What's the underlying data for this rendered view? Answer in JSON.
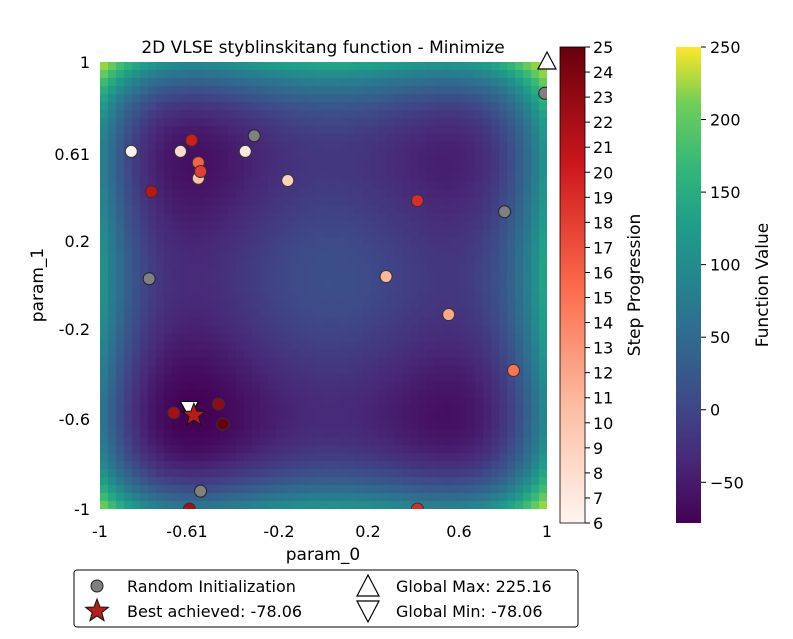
{
  "chart_data": {
    "type": "scatter",
    "title": "2D VLSE styblinskitang function - Minimize",
    "xlabel": "param_0",
    "ylabel": "param_1",
    "xlim": [
      -1,
      1
    ],
    "ylim": [
      -1,
      1
    ],
    "x_ticks": [
      "-1",
      "-0.61",
      "-0.2",
      "0.2",
      "0.6",
      "1"
    ],
    "y_ticks": [
      "1",
      "0.61",
      "0.2",
      "-0.2",
      "-0.6",
      "-1"
    ],
    "grid": false,
    "background": "heatmap of function value (viridis)",
    "colorbar_step": {
      "label": "Step Progression",
      "range": [
        6,
        25
      ],
      "ticks": [
        "6",
        "7",
        "8",
        "9",
        "10",
        "11",
        "12",
        "13",
        "14",
        "15",
        "16",
        "17",
        "18",
        "19",
        "20",
        "21",
        "22",
        "23",
        "24",
        "25"
      ],
      "colormap": "Reds"
    },
    "colorbar_function": {
      "label": "Function Value",
      "range": [
        -78.06,
        250
      ],
      "ticks": [
        "250",
        "200",
        "150",
        "100",
        "50",
        "0",
        "−50"
      ],
      "colormap": "viridis"
    },
    "random_initialization": [
      {
        "x": 0.99,
        "y": 0.86
      },
      {
        "x": -0.31,
        "y": 0.67
      },
      {
        "x": 0.81,
        "y": 0.33
      },
      {
        "x": -0.78,
        "y": 0.03
      },
      {
        "x": -0.55,
        "y": -0.92
      }
    ],
    "steps": [
      {
        "x": -0.86,
        "y": 0.6,
        "step": 6
      },
      {
        "x": -0.35,
        "y": 0.6,
        "step": 7
      },
      {
        "x": -0.64,
        "y": 0.6,
        "step": 8
      },
      {
        "x": -0.16,
        "y": 0.47,
        "step": 9
      },
      {
        "x": -0.56,
        "y": 0.48,
        "step": 10
      },
      {
        "x": 0.28,
        "y": 0.04,
        "step": 11
      },
      {
        "x": 0.56,
        "y": -0.13,
        "step": 12
      },
      {
        "x": 0.85,
        "y": -0.38,
        "step": 15
      },
      {
        "x": -0.56,
        "y": 0.55,
        "step": 16
      },
      {
        "x": -0.55,
        "y": 0.51,
        "step": 18
      },
      {
        "x": 0.42,
        "y": 0.38,
        "step": 19
      },
      {
        "x": 0.42,
        "y": -1.0,
        "step": 19
      },
      {
        "x": -0.59,
        "y": 0.65,
        "step": 20
      },
      {
        "x": -0.77,
        "y": 0.42,
        "step": 21
      },
      {
        "x": -0.6,
        "y": -1.0,
        "step": 22
      },
      {
        "x": -0.67,
        "y": -0.57,
        "step": 22
      },
      {
        "x": -0.47,
        "y": -0.53,
        "step": 23
      },
      {
        "x": -0.45,
        "y": -0.62,
        "step": 25
      }
    ],
    "best": {
      "x": -0.58,
      "y": -0.58
    },
    "global_max": {
      "x": 1.0,
      "y": 1.0
    },
    "global_min": {
      "x": -0.6,
      "y": -0.55
    }
  },
  "legend": {
    "random_init": "Random Initialization",
    "best": "Best achieved: -78.06",
    "global_max": "Global Max: 225.16",
    "global_min": "Global Min: -78.06"
  },
  "colors": {
    "random_init": "#808080",
    "best": "#b71c1c"
  }
}
